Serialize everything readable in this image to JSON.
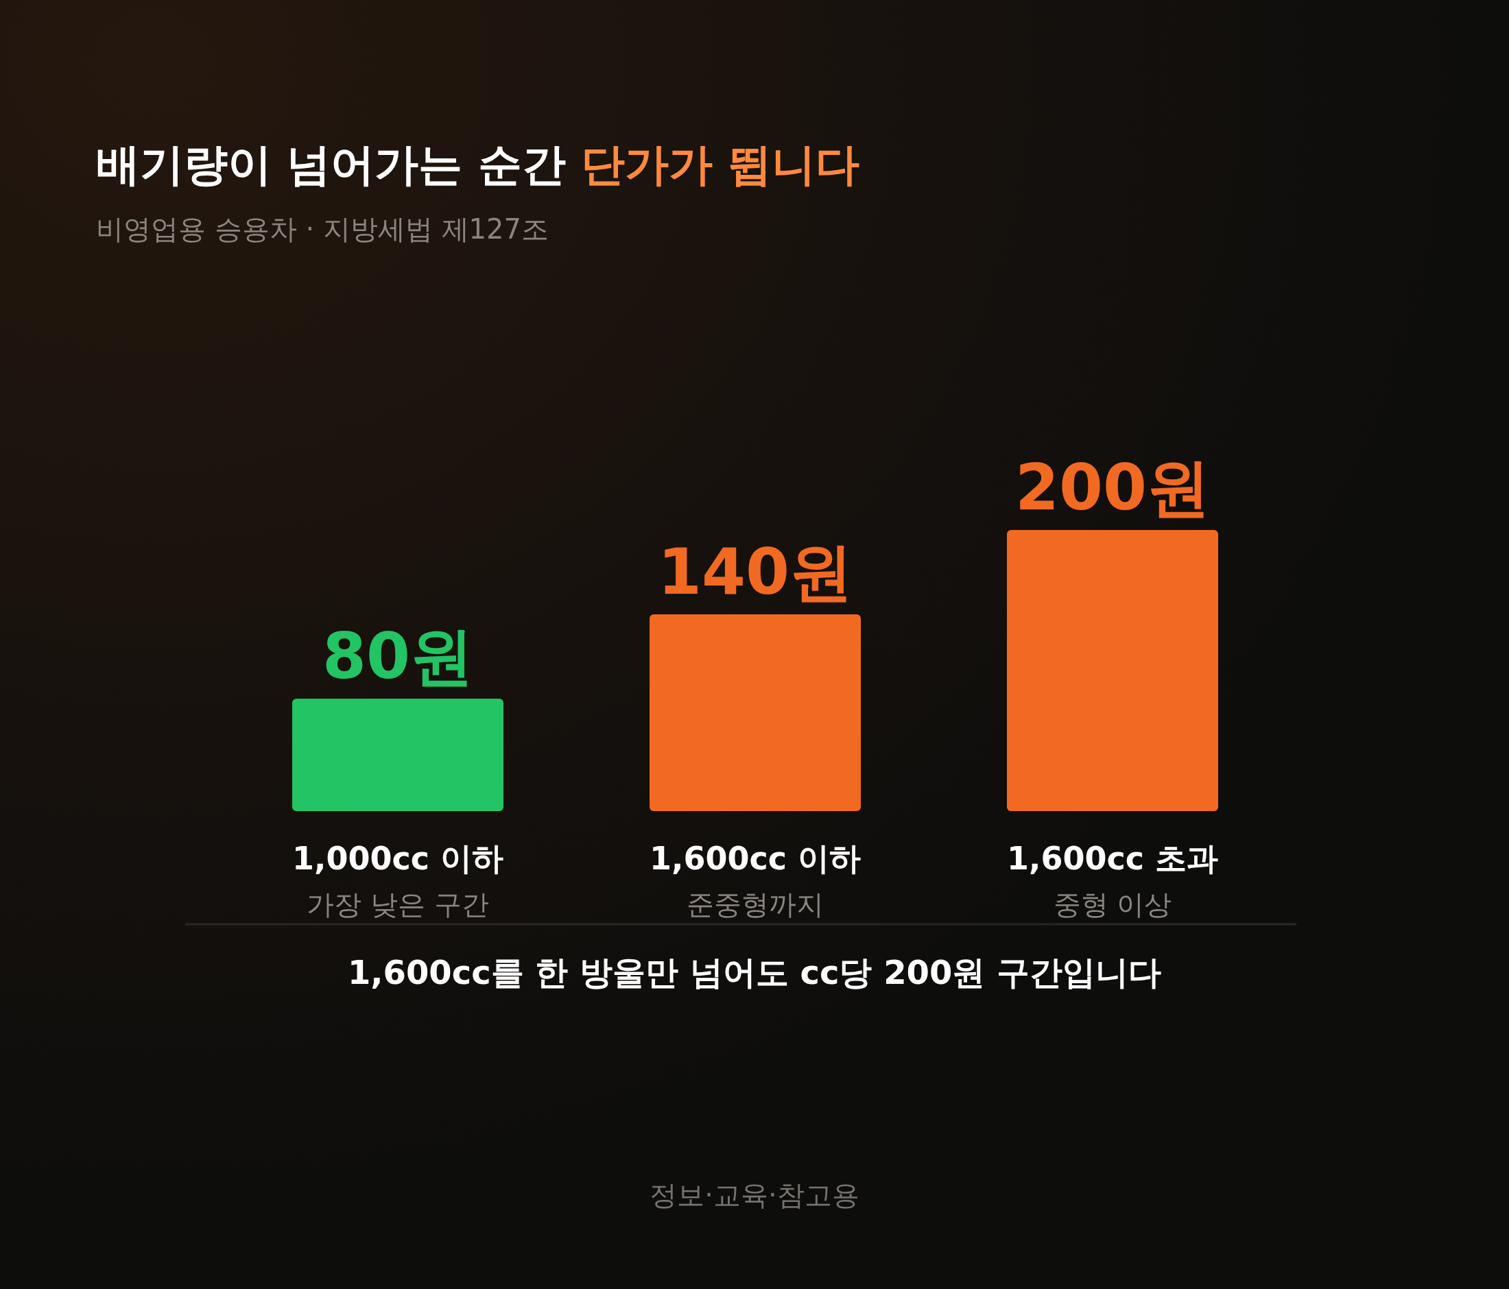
{
  "chart_data": {
    "type": "bar",
    "title": "배기량이 넘어가는 순간 **단가가 뜁니다**",
    "subtitle": "비영업용 승용차 · 지방세법 제127조",
    "categories": [
      "1,000cc 이하",
      "1,600cc 이하",
      "1,600cc 초과"
    ],
    "values": [
      80,
      140,
      200
    ],
    "colors": [
      "#22c464",
      "#f26a22",
      "#f26a22"
    ],
    "value_labels": [
      "80원",
      "140원",
      "200원"
    ],
    "annotations": [
      "가장 낮은 구간",
      "준중형까지",
      "중형 이상",
      "1,600cc를 한 방울만 넘어도 cc당 200원 구간입니다",
      "정보·교육·참고용"
    ],
    "ylim": [
      0,
      200
    ]
  }
}
